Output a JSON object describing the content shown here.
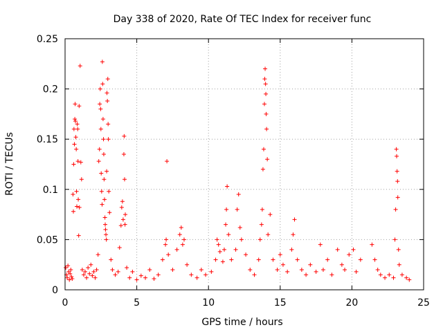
{
  "chart_data": {
    "type": "scatter",
    "title": "Day 338 of 2020, Rate Of TEC Index for receiver func",
    "xlabel": "GPS time / hours",
    "ylabel": "ROTI / TECUs",
    "xlim": [
      0,
      25
    ],
    "ylim": [
      0,
      0.25
    ],
    "x_ticks": [
      0,
      5,
      10,
      15,
      20,
      25
    ],
    "y_ticks": [
      0,
      0.05,
      0.1,
      0.15,
      0.2,
      0.25
    ],
    "x_tick_labels": [
      "0",
      "5",
      "10",
      "15",
      "20",
      "25"
    ],
    "y_tick_labels": [
      "0",
      "0.05",
      "0.1",
      "0.15",
      "0.2",
      "0.25"
    ],
    "grid": true,
    "marker": "plus",
    "color": "#ff0000",
    "series": [
      {
        "points": [
          [
            0.05,
            0.022
          ],
          [
            0.1,
            0.015
          ],
          [
            0.15,
            0.012
          ],
          [
            0.2,
            0.024
          ],
          [
            0.25,
            0.018
          ],
          [
            0.3,
            0.01
          ],
          [
            0.35,
            0.016
          ],
          [
            0.4,
            0.02
          ],
          [
            0.45,
            0.013
          ],
          [
            0.5,
            0.011
          ],
          [
            0.55,
            0.095
          ],
          [
            0.58,
            0.078
          ],
          [
            0.6,
            0.125
          ],
          [
            0.62,
            0.16
          ],
          [
            0.65,
            0.145
          ],
          [
            0.68,
            0.17
          ],
          [
            0.7,
            0.185
          ],
          [
            0.72,
            0.168
          ],
          [
            0.75,
            0.152
          ],
          [
            0.78,
            0.14
          ],
          [
            0.8,
            0.098
          ],
          [
            0.82,
            0.083
          ],
          [
            0.85,
            0.165
          ],
          [
            0.88,
            0.16
          ],
          [
            0.9,
            0.128
          ],
          [
            0.92,
            0.09
          ],
          [
            0.95,
            0.054
          ],
          [
            0.98,
            0.183
          ],
          [
            1.0,
            0.082
          ],
          [
            1.05,
            0.223
          ],
          [
            1.1,
            0.127
          ],
          [
            1.15,
            0.11
          ],
          [
            1.2,
            0.02
          ],
          [
            1.3,
            0.015
          ],
          [
            1.4,
            0.018
          ],
          [
            1.5,
            0.012
          ],
          [
            1.6,
            0.022
          ],
          [
            1.7,
            0.016
          ],
          [
            1.8,
            0.025
          ],
          [
            1.9,
            0.014
          ],
          [
            2.0,
            0.018
          ],
          [
            2.1,
            0.012
          ],
          [
            2.2,
            0.02
          ],
          [
            2.3,
            0.035
          ],
          [
            2.35,
            0.128
          ],
          [
            2.4,
            0.14
          ],
          [
            2.42,
            0.185
          ],
          [
            2.45,
            0.2
          ],
          [
            2.48,
            0.18
          ],
          [
            2.5,
            0.16
          ],
          [
            2.52,
            0.116
          ],
          [
            2.55,
            0.098
          ],
          [
            2.58,
            0.085
          ],
          [
            2.6,
            0.227
          ],
          [
            2.62,
            0.205
          ],
          [
            2.65,
            0.17
          ],
          [
            2.68,
            0.15
          ],
          [
            2.7,
            0.135
          ],
          [
            2.72,
            0.11
          ],
          [
            2.75,
            0.09
          ],
          [
            2.78,
            0.072
          ],
          [
            2.8,
            0.065
          ],
          [
            2.82,
            0.06
          ],
          [
            2.85,
            0.055
          ],
          [
            2.88,
            0.05
          ],
          [
            2.9,
            0.118
          ],
          [
            2.92,
            0.196
          ],
          [
            2.95,
            0.188
          ],
          [
            2.98,
            0.21
          ],
          [
            3.0,
            0.165
          ],
          [
            3.02,
            0.15
          ],
          [
            3.05,
            0.098
          ],
          [
            3.1,
            0.077
          ],
          [
            3.2,
            0.03
          ],
          [
            3.3,
            0.02
          ],
          [
            3.5,
            0.015
          ],
          [
            3.7,
            0.018
          ],
          [
            3.8,
            0.042
          ],
          [
            3.9,
            0.064
          ],
          [
            3.95,
            0.082
          ],
          [
            4.0,
            0.088
          ],
          [
            4.05,
            0.07
          ],
          [
            4.1,
            0.135
          ],
          [
            4.12,
            0.153
          ],
          [
            4.15,
            0.11
          ],
          [
            4.18,
            0.065
          ],
          [
            4.2,
            0.075
          ],
          [
            4.3,
            0.022
          ],
          [
            4.5,
            0.012
          ],
          [
            4.7,
            0.018
          ],
          [
            5.0,
            0.01
          ],
          [
            5.3,
            0.014
          ],
          [
            5.6,
            0.012
          ],
          [
            5.9,
            0.02
          ],
          [
            6.2,
            0.011
          ],
          [
            6.5,
            0.015
          ],
          [
            6.8,
            0.03
          ],
          [
            7.0,
            0.045
          ],
          [
            7.05,
            0.05
          ],
          [
            7.1,
            0.128
          ],
          [
            7.2,
            0.035
          ],
          [
            7.5,
            0.02
          ],
          [
            7.8,
            0.04
          ],
          [
            8.0,
            0.055
          ],
          [
            8.1,
            0.062
          ],
          [
            8.2,
            0.045
          ],
          [
            8.3,
            0.05
          ],
          [
            8.5,
            0.025
          ],
          [
            8.8,
            0.015
          ],
          [
            9.2,
            0.012
          ],
          [
            9.5,
            0.02
          ],
          [
            9.8,
            0.015
          ],
          [
            10.2,
            0.018
          ],
          [
            10.5,
            0.03
          ],
          [
            10.6,
            0.05
          ],
          [
            10.7,
            0.045
          ],
          [
            10.8,
            0.038
          ],
          [
            11.0,
            0.028
          ],
          [
            11.1,
            0.04
          ],
          [
            11.2,
            0.065
          ],
          [
            11.25,
            0.08
          ],
          [
            11.3,
            0.103
          ],
          [
            11.4,
            0.055
          ],
          [
            11.6,
            0.03
          ],
          [
            11.9,
            0.04
          ],
          [
            12.0,
            0.08
          ],
          [
            12.1,
            0.095
          ],
          [
            12.2,
            0.062
          ],
          [
            12.3,
            0.05
          ],
          [
            12.6,
            0.035
          ],
          [
            12.9,
            0.02
          ],
          [
            13.2,
            0.015
          ],
          [
            13.5,
            0.03
          ],
          [
            13.6,
            0.05
          ],
          [
            13.7,
            0.065
          ],
          [
            13.75,
            0.08
          ],
          [
            13.8,
            0.12
          ],
          [
            13.85,
            0.14
          ],
          [
            13.9,
            0.185
          ],
          [
            13.92,
            0.21
          ],
          [
            13.95,
            0.22
          ],
          [
            13.98,
            0.205
          ],
          [
            14.0,
            0.195
          ],
          [
            14.02,
            0.175
          ],
          [
            14.05,
            0.16
          ],
          [
            14.1,
            0.13
          ],
          [
            14.15,
            0.055
          ],
          [
            14.3,
            0.075
          ],
          [
            14.5,
            0.03
          ],
          [
            14.8,
            0.02
          ],
          [
            15.0,
            0.035
          ],
          [
            15.2,
            0.025
          ],
          [
            15.5,
            0.018
          ],
          [
            15.8,
            0.04
          ],
          [
            15.9,
            0.055
          ],
          [
            16.0,
            0.07
          ],
          [
            16.2,
            0.03
          ],
          [
            16.5,
            0.02
          ],
          [
            16.8,
            0.015
          ],
          [
            17.1,
            0.025
          ],
          [
            17.5,
            0.018
          ],
          [
            17.8,
            0.045
          ],
          [
            18.0,
            0.02
          ],
          [
            18.3,
            0.03
          ],
          [
            18.6,
            0.015
          ],
          [
            19.0,
            0.04
          ],
          [
            19.3,
            0.025
          ],
          [
            19.5,
            0.02
          ],
          [
            19.8,
            0.035
          ],
          [
            20.1,
            0.04
          ],
          [
            20.3,
            0.018
          ],
          [
            20.6,
            0.03
          ],
          [
            21.4,
            0.045
          ],
          [
            21.6,
            0.03
          ],
          [
            21.8,
            0.02
          ],
          [
            22.0,
            0.015
          ],
          [
            22.3,
            0.012
          ],
          [
            22.6,
            0.015
          ],
          [
            22.9,
            0.012
          ],
          [
            23.0,
            0.05
          ],
          [
            23.05,
            0.08
          ],
          [
            23.1,
            0.14
          ],
          [
            23.12,
            0.133
          ],
          [
            23.15,
            0.118
          ],
          [
            23.18,
            0.108
          ],
          [
            23.2,
            0.092
          ],
          [
            23.25,
            0.04
          ],
          [
            23.3,
            0.025
          ],
          [
            23.5,
            0.015
          ],
          [
            23.8,
            0.012
          ],
          [
            24.0,
            0.01
          ]
        ]
      }
    ]
  }
}
